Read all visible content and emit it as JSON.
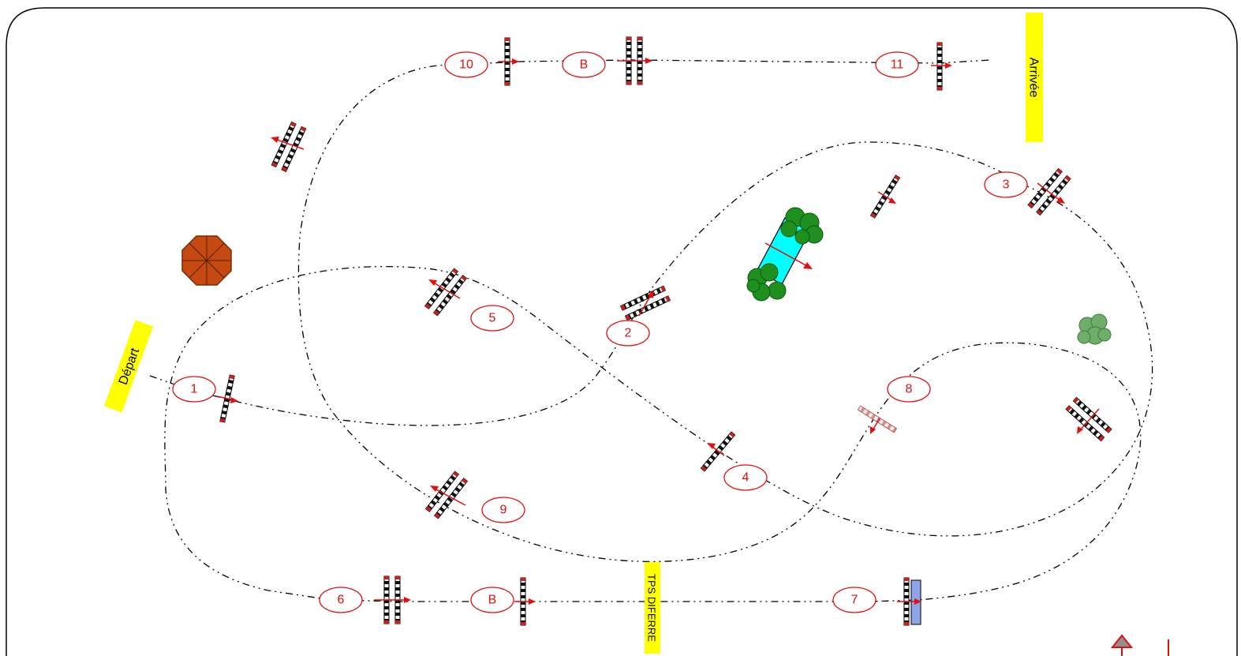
{
  "labels": {
    "depart": "Départ",
    "arrivee": "Arrivée",
    "tps_differe": "TPS DIFERRE"
  },
  "obstacles": {
    "n1": "1",
    "n2": "2",
    "n3": "3",
    "n4": "4",
    "n5": "5",
    "n6": "6",
    "n7": "7",
    "n8": "8",
    "n9": "9",
    "n10": "10",
    "n11": "11",
    "b_top": "B",
    "b_bottom": "B"
  },
  "colors": {
    "label_red": "#e01010",
    "sign_yellow": "#ffff00",
    "water": "#00ffff",
    "tree_green": "#1f8f1f",
    "umbrella": "#c44a12",
    "wall_blue": "#8fa4e6",
    "bush": "#6fae6a"
  }
}
